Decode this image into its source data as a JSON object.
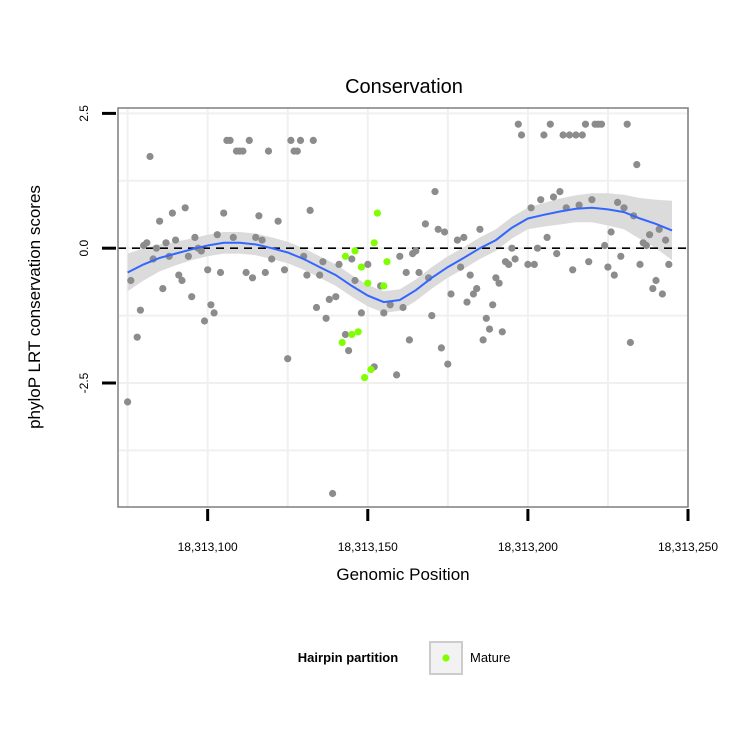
{
  "chart_data": {
    "type": "scatter",
    "title": "Conservation",
    "xlabel": "Genomic Position",
    "ylabel": "phyloP LRT conservation scores",
    "xlim": [
      18313072,
      18313250
    ],
    "ylim": [
      -4.8,
      2.6
    ],
    "x_ticks": [
      {
        "value": 18313100,
        "label": "18,313,100"
      },
      {
        "value": 18313150,
        "label": "18,313,150"
      },
      {
        "value": 18313200,
        "label": "18,313,200"
      },
      {
        "value": 18313250,
        "label": "18,313,250"
      }
    ],
    "y_ticks": [
      {
        "value": -2.5,
        "label": "-2.5"
      },
      {
        "value": 0.0,
        "label": "0.0"
      },
      {
        "value": 2.5,
        "label": "2.5"
      }
    ],
    "grid": true,
    "reference_line": {
      "y": 0,
      "style": "dashed",
      "color": "#000000"
    },
    "legend": {
      "title": "Hairpin partition",
      "placement": "bottom",
      "entries": [
        {
          "label": "Mature",
          "color": "#7fff00"
        }
      ]
    },
    "series": [
      {
        "group": "other",
        "color": "#8c8c8c",
        "points": [
          [
            18313075,
            -2.85
          ],
          [
            18313076,
            -0.6
          ],
          [
            18313078,
            -1.65
          ],
          [
            18313079,
            -1.15
          ],
          [
            18313080,
            0.05
          ],
          [
            18313081,
            0.1
          ],
          [
            18313082,
            1.7
          ],
          [
            18313083,
            -0.2
          ],
          [
            18313084,
            0.0
          ],
          [
            18313085,
            0.5
          ],
          [
            18313086,
            -0.75
          ],
          [
            18313087,
            0.1
          ],
          [
            18313088,
            -0.15
          ],
          [
            18313089,
            0.65
          ],
          [
            18313090,
            0.15
          ],
          [
            18313091,
            -0.5
          ],
          [
            18313092,
            -0.6
          ],
          [
            18313093,
            0.75
          ],
          [
            18313094,
            -0.15
          ],
          [
            18313095,
            -0.9
          ],
          [
            18313096,
            0.2
          ],
          [
            18313097,
            0.0
          ],
          [
            18313098,
            -0.05
          ],
          [
            18313099,
            -1.35
          ],
          [
            18313100,
            -0.4
          ],
          [
            18313101,
            -1.05
          ],
          [
            18313102,
            -1.2
          ],
          [
            18313103,
            0.25
          ],
          [
            18313104,
            -0.45
          ],
          [
            18313105,
            0.65
          ],
          [
            18313106,
            2.0
          ],
          [
            18313107,
            2.0
          ],
          [
            18313108,
            0.2
          ],
          [
            18313109,
            1.8
          ],
          [
            18313110,
            1.8
          ],
          [
            18313111,
            1.8
          ],
          [
            18313112,
            -0.45
          ],
          [
            18313113,
            2.0
          ],
          [
            18313114,
            -0.55
          ],
          [
            18313115,
            0.2
          ],
          [
            18313116,
            0.6
          ],
          [
            18313117,
            0.15
          ],
          [
            18313118,
            -0.45
          ],
          [
            18313119,
            1.8
          ],
          [
            18313120,
            -0.2
          ],
          [
            18313122,
            0.5
          ],
          [
            18313124,
            -0.4
          ],
          [
            18313125,
            -2.05
          ],
          [
            18313126,
            2.0
          ],
          [
            18313127,
            1.8
          ],
          [
            18313128,
            1.8
          ],
          [
            18313129,
            2.0
          ],
          [
            18313130,
            -0.15
          ],
          [
            18313131,
            -0.5
          ],
          [
            18313132,
            0.7
          ],
          [
            18313133,
            2.0
          ],
          [
            18313134,
            -1.1
          ],
          [
            18313135,
            -0.5
          ],
          [
            18313136,
            -0.25
          ],
          [
            18313137,
            -1.3
          ],
          [
            18313138,
            -0.95
          ],
          [
            18313139,
            -4.55
          ],
          [
            18313140,
            -0.9
          ],
          [
            18313141,
            -0.3
          ],
          [
            18313143,
            -1.6
          ],
          [
            18313144,
            -1.9
          ],
          [
            18313145,
            -0.2
          ],
          [
            18313146,
            -0.6
          ],
          [
            18313148,
            -1.2
          ],
          [
            18313150,
            -0.3
          ],
          [
            18313152,
            -2.2
          ],
          [
            18313154,
            -0.7
          ],
          [
            18313155,
            -1.2
          ],
          [
            18313157,
            -1.05
          ],
          [
            18313159,
            -2.35
          ],
          [
            18313160,
            -0.15
          ],
          [
            18313161,
            -1.1
          ],
          [
            18313162,
            -0.45
          ],
          [
            18313163,
            -1.7
          ],
          [
            18313164,
            -0.1
          ],
          [
            18313165,
            -0.05
          ],
          [
            18313166,
            -0.45
          ],
          [
            18313168,
            0.45
          ],
          [
            18313169,
            -0.55
          ],
          [
            18313170,
            -1.25
          ],
          [
            18313171,
            1.05
          ],
          [
            18313172,
            0.35
          ],
          [
            18313173,
            -1.85
          ],
          [
            18313174,
            0.3
          ],
          [
            18313175,
            -2.15
          ],
          [
            18313176,
            -0.85
          ],
          [
            18313178,
            0.15
          ],
          [
            18313179,
            -0.35
          ],
          [
            18313180,
            0.2
          ],
          [
            18313181,
            -1.0
          ],
          [
            18313182,
            -0.5
          ],
          [
            18313183,
            -0.85
          ],
          [
            18313184,
            -0.75
          ],
          [
            18313185,
            0.35
          ],
          [
            18313186,
            -1.7
          ],
          [
            18313187,
            -1.3
          ],
          [
            18313188,
            -1.5
          ],
          [
            18313189,
            -1.05
          ],
          [
            18313190,
            -0.55
          ],
          [
            18313191,
            -0.65
          ],
          [
            18313192,
            -1.55
          ],
          [
            18313193,
            -0.25
          ],
          [
            18313194,
            -0.3
          ],
          [
            18313195,
            0.0
          ],
          [
            18313196,
            -0.2
          ],
          [
            18313197,
            2.3
          ],
          [
            18313198,
            2.1
          ],
          [
            18313200,
            -0.3
          ],
          [
            18313201,
            0.75
          ],
          [
            18313202,
            -0.3
          ],
          [
            18313203,
            0.0
          ],
          [
            18313204,
            0.9
          ],
          [
            18313205,
            2.1
          ],
          [
            18313206,
            0.2
          ],
          [
            18313207,
            2.3
          ],
          [
            18313208,
            0.95
          ],
          [
            18313209,
            -0.1
          ],
          [
            18313210,
            1.05
          ],
          [
            18313211,
            2.1
          ],
          [
            18313212,
            0.75
          ],
          [
            18313213,
            2.1
          ],
          [
            18313214,
            -0.4
          ],
          [
            18313215,
            2.1
          ],
          [
            18313216,
            0.8
          ],
          [
            18313217,
            2.1
          ],
          [
            18313218,
            2.3
          ],
          [
            18313219,
            -0.25
          ],
          [
            18313220,
            0.9
          ],
          [
            18313221,
            2.3
          ],
          [
            18313222,
            2.3
          ],
          [
            18313223,
            2.3
          ],
          [
            18313224,
            0.05
          ],
          [
            18313225,
            -0.35
          ],
          [
            18313226,
            0.3
          ],
          [
            18313227,
            -0.5
          ],
          [
            18313228,
            0.85
          ],
          [
            18313229,
            -0.15
          ],
          [
            18313230,
            0.75
          ],
          [
            18313231,
            2.3
          ],
          [
            18313232,
            -1.75
          ],
          [
            18313233,
            0.6
          ],
          [
            18313234,
            1.55
          ],
          [
            18313235,
            -0.3
          ],
          [
            18313236,
            0.1
          ],
          [
            18313237,
            0.05
          ],
          [
            18313238,
            0.25
          ],
          [
            18313239,
            -0.75
          ],
          [
            18313240,
            -0.6
          ],
          [
            18313241,
            0.35
          ],
          [
            18313242,
            -0.85
          ],
          [
            18313243,
            0.15
          ],
          [
            18313244,
            -0.3
          ]
        ]
      },
      {
        "group": "Mature",
        "color": "#7fff00",
        "points": [
          [
            18313142,
            -1.75
          ],
          [
            18313143,
            -0.15
          ],
          [
            18313145,
            -1.6
          ],
          [
            18313146,
            -0.05
          ],
          [
            18313147,
            -1.55
          ],
          [
            18313148,
            -0.35
          ],
          [
            18313149,
            -2.4
          ],
          [
            18313150,
            -0.65
          ],
          [
            18313151,
            -2.25
          ],
          [
            18313152,
            0.1
          ],
          [
            18313153,
            0.65
          ],
          [
            18313155,
            -0.7
          ],
          [
            18313156,
            -0.25
          ]
        ]
      }
    ],
    "smooth": {
      "color": "#3366ff",
      "band_color": "#d9d9d9",
      "points": [
        [
          18313075,
          -0.45
        ],
        [
          18313080,
          -0.3
        ],
        [
          18313085,
          -0.18
        ],
        [
          18313090,
          -0.1
        ],
        [
          18313095,
          -0.02
        ],
        [
          18313100,
          0.05
        ],
        [
          18313105,
          0.1
        ],
        [
          18313110,
          0.1
        ],
        [
          18313115,
          0.07
        ],
        [
          18313120,
          0.0
        ],
        [
          18313125,
          -0.08
        ],
        [
          18313130,
          -0.2
        ],
        [
          18313135,
          -0.35
        ],
        [
          18313140,
          -0.5
        ],
        [
          18313145,
          -0.7
        ],
        [
          18313150,
          -0.88
        ],
        [
          18313155,
          -1.0
        ],
        [
          18313160,
          -0.96
        ],
        [
          18313165,
          -0.78
        ],
        [
          18313170,
          -0.55
        ],
        [
          18313175,
          -0.35
        ],
        [
          18313180,
          -0.18
        ],
        [
          18313185,
          0.0
        ],
        [
          18313190,
          0.15
        ],
        [
          18313195,
          0.38
        ],
        [
          18313200,
          0.55
        ],
        [
          18313205,
          0.62
        ],
        [
          18313210,
          0.68
        ],
        [
          18313215,
          0.73
        ],
        [
          18313220,
          0.75
        ],
        [
          18313225,
          0.72
        ],
        [
          18313230,
          0.67
        ],
        [
          18313235,
          0.55
        ],
        [
          18313240,
          0.45
        ],
        [
          18313245,
          0.33
        ]
      ],
      "band_halfwidth": [
        0.35,
        0.3,
        0.25,
        0.22,
        0.2,
        0.2,
        0.2,
        0.2,
        0.2,
        0.2,
        0.2,
        0.2,
        0.2,
        0.2,
        0.2,
        0.2,
        0.2,
        0.2,
        0.2,
        0.2,
        0.2,
        0.2,
        0.2,
        0.2,
        0.2,
        0.2,
        0.22,
        0.24,
        0.25,
        0.27,
        0.3,
        0.32,
        0.38,
        0.45,
        0.55
      ]
    }
  }
}
